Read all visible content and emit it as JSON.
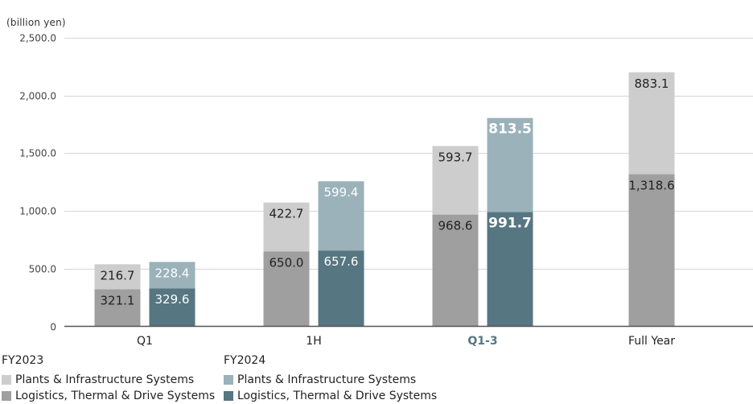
{
  "chart_data": {
    "type": "bar",
    "stacked": true,
    "unit_label": "(billion yen)",
    "categories": [
      "Q1",
      "1H",
      "Q1-3",
      "Full Year"
    ],
    "highlight_category": "Q1-3",
    "ylim": [
      0,
      2500
    ],
    "yticks": [
      "0",
      "500.0",
      "1,000.0",
      "1,500.0",
      "2,000.0",
      "2,500.0"
    ],
    "ytick_values": [
      0,
      500,
      1000,
      1500,
      2000,
      2500
    ],
    "grid": true,
    "legend_position": "bottom-left",
    "groups": [
      {
        "name": "FY2023",
        "series": [
          {
            "name": "Logistics, Thermal & Drive Systems",
            "color": "#9f9f9f",
            "values": [
              321.1,
              650.0,
              968.6,
              1318.6
            ],
            "labels": [
              "321.1",
              "650.0",
              "968.6",
              "1,318.6"
            ]
          },
          {
            "name": "Plants & Infrastructure Systems",
            "color": "#cdcdcd",
            "values": [
              216.7,
              422.7,
              593.7,
              883.1
            ],
            "labels": [
              "216.7",
              "422.7",
              "593.7",
              "883.1"
            ]
          }
        ]
      },
      {
        "name": "FY2024",
        "series": [
          {
            "name": "Logistics, Thermal & Drive Systems",
            "color": "#567682",
            "values": [
              329.6,
              657.6,
              991.7,
              null
            ],
            "labels": [
              "329.6",
              "657.6",
              "991.7",
              ""
            ]
          },
          {
            "name": "Plants & Infrastructure Systems",
            "color": "#9bb2ba",
            "values": [
              228.4,
              599.4,
              813.5,
              null
            ],
            "labels": [
              "228.4",
              "599.4",
              "813.5",
              ""
            ]
          }
        ]
      }
    ]
  },
  "legend": {
    "fy2023": {
      "title": "FY2023",
      "items": [
        "Plants & Infrastructure Systems",
        "Logistics, Thermal & Drive Systems"
      ]
    },
    "fy2024": {
      "title": "FY2024",
      "items": [
        "Plants & Infrastructure Systems",
        "Logistics, Thermal & Drive Systems"
      ]
    }
  }
}
